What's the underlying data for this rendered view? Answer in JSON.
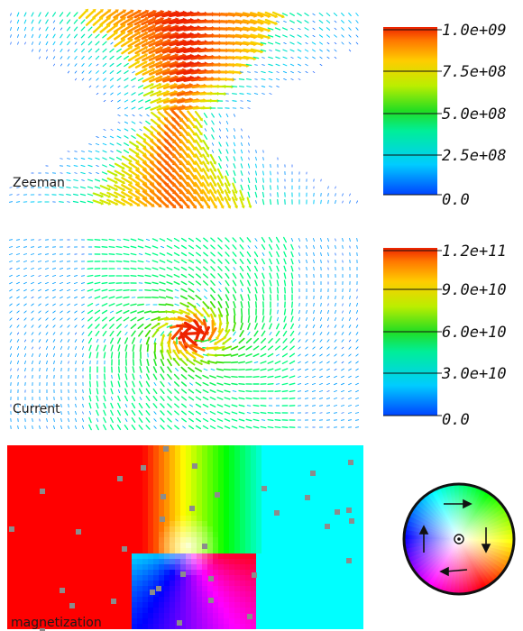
{
  "panels": {
    "zeeman": {
      "label": "Zeeman"
    },
    "current": {
      "label": "Current"
    },
    "magnetization": {
      "label": "magnetization"
    }
  },
  "colorbars": {
    "zeeman": {
      "ticks": [
        "1.0e+09",
        "7.5e+08",
        "5.0e+08",
        "2.5e+08",
        "0.0"
      ]
    },
    "current": {
      "ticks": [
        "1.2e+11",
        "9.0e+10",
        "6.0e+10",
        "3.0e+10",
        "0.0"
      ]
    }
  },
  "colors": {
    "colormap": [
      "#0033ff",
      "#00ccff",
      "#00ff88",
      "#33dd00",
      "#ccee00",
      "#ffcc00",
      "#ff7700",
      "#ee2200"
    ],
    "defect": "#8c8c8c"
  },
  "icons": {
    "color_wheel": "hsv-color-wheel-icon"
  }
}
